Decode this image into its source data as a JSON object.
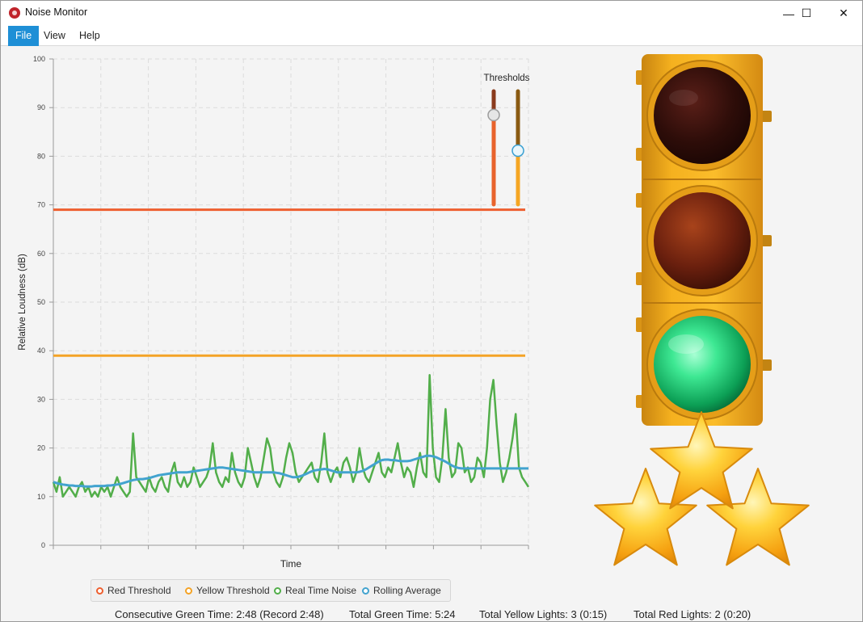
{
  "window": {
    "title": "Noise Monitor",
    "controls": {
      "minimize": "—",
      "maximize": "☐",
      "close": "✕"
    }
  },
  "menu": [
    {
      "label": "File",
      "active": true
    },
    {
      "label": "View",
      "active": false
    },
    {
      "label": "Help",
      "active": false
    }
  ],
  "thresholds_label": "Thresholds",
  "sliders": {
    "red": {
      "value": 85.8,
      "min": 70,
      "max": 90,
      "color": "#e8632c"
    },
    "yellow": {
      "value": 79.5,
      "min": 70,
      "max": 90,
      "color": "#f5a623"
    }
  },
  "traffic_light": {
    "active_lamp": "green"
  },
  "stars": {
    "count": 3,
    "icon": "gold-star-icon"
  },
  "colors": {
    "red_threshold": "#ee5f2f",
    "yellow_threshold": "#f4a326",
    "real_time_noise": "#52ae4a",
    "rolling_average": "#42a3cf"
  },
  "chart_data": {
    "type": "line",
    "xlabel": "Time",
    "ylabel": "Relative Loudness (dB)",
    "ylim": [
      0,
      100
    ],
    "yticks": [
      0,
      10,
      20,
      30,
      40,
      50,
      60,
      70,
      80,
      90,
      100
    ],
    "grid": true,
    "legend_position": "bottom",
    "x": [
      0,
      1,
      2,
      3,
      4,
      5,
      6,
      7,
      8,
      9,
      10,
      11,
      12,
      13,
      14,
      15,
      16,
      17,
      18,
      19,
      20,
      21,
      22,
      23,
      24,
      25,
      26,
      27,
      28,
      29,
      30,
      31,
      32,
      33,
      34,
      35,
      36,
      37,
      38,
      39,
      40,
      41,
      42,
      43,
      44,
      45,
      46,
      47,
      48,
      49,
      50,
      51,
      52,
      53,
      54,
      55,
      56,
      57,
      58,
      59,
      60,
      61,
      62,
      63,
      64,
      65,
      66,
      67,
      68,
      69,
      70,
      71,
      72,
      73,
      74,
      75,
      76,
      77,
      78,
      79,
      80,
      81,
      82,
      83,
      84,
      85,
      86,
      87,
      88,
      89,
      90,
      91,
      92,
      93,
      94,
      95,
      96,
      97,
      98,
      99,
      100,
      101,
      102,
      103,
      104,
      105,
      106,
      107,
      108,
      109,
      110,
      111,
      112,
      113,
      114,
      115,
      116,
      117,
      118,
      119,
      120,
      121,
      122,
      123,
      124,
      125,
      126,
      127,
      128,
      129,
      130,
      131,
      132,
      133,
      134,
      135,
      136,
      137,
      138,
      139,
      140,
      141,
      142,
      143,
      144,
      145,
      146,
      147,
      148,
      149
    ],
    "series": [
      {
        "name": "Red Threshold",
        "constant": 69
      },
      {
        "name": "Yellow Threshold",
        "constant": 39
      },
      {
        "name": "Real Time Noise",
        "values": [
          13,
          11,
          14,
          10,
          11,
          12,
          11,
          10,
          12,
          13,
          11,
          12,
          10,
          11,
          10,
          12,
          11,
          12,
          10,
          12,
          14,
          12,
          11,
          10,
          11,
          23,
          14,
          13,
          12,
          11,
          14,
          12,
          11,
          13,
          14,
          12,
          11,
          15,
          17,
          13,
          12,
          14,
          12,
          13,
          16,
          14,
          12,
          13,
          14,
          16,
          21,
          15,
          13,
          12,
          14,
          13,
          19,
          15,
          13,
          12,
          14,
          20,
          17,
          14,
          12,
          14,
          18,
          22,
          20,
          15,
          13,
          12,
          14,
          18,
          21,
          19,
          15,
          13,
          14,
          15,
          16,
          17,
          14,
          13,
          17,
          23,
          15,
          13,
          15,
          16,
          14,
          17,
          18,
          16,
          13,
          15,
          20,
          16,
          14,
          13,
          15,
          17,
          19,
          15,
          14,
          16,
          15,
          18,
          21,
          17,
          14,
          16,
          15,
          12,
          16,
          19,
          15,
          14,
          35,
          20,
          14,
          13,
          18,
          28,
          18,
          14,
          15,
          21,
          20,
          15,
          16,
          13,
          14,
          18,
          17,
          14,
          20,
          30,
          34,
          25,
          17,
          13,
          15,
          18,
          22,
          27,
          16,
          14,
          13,
          12
        ]
      },
      {
        "name": "Rolling Average",
        "values": [
          13,
          12.8,
          12.6,
          12.5,
          12.4,
          12.3,
          12.3,
          12.2,
          12.2,
          12.2,
          12.1,
          12.1,
          12.1,
          12.2,
          12.2,
          12.2,
          12.2,
          12.3,
          12.3,
          12.4,
          12.5,
          12.6,
          12.8,
          13,
          13.2,
          13.4,
          13.5,
          13.6,
          13.6,
          13.7,
          13.8,
          14,
          14.2,
          14.4,
          14.5,
          14.6,
          14.7,
          14.8,
          14.9,
          15,
          15,
          15,
          15,
          15.1,
          15.2,
          15.3,
          15.4,
          15.5,
          15.6,
          15.7,
          15.8,
          15.9,
          16,
          16,
          15.9,
          15.8,
          15.7,
          15.6,
          15.5,
          15.4,
          15.3,
          15.2,
          15.1,
          15,
          15,
          15,
          15,
          15,
          15,
          15,
          14.9,
          14.8,
          14.6,
          14.4,
          14.2,
          14,
          14,
          14.1,
          14.3,
          14.6,
          14.9,
          15.2,
          15.4,
          15.5,
          15.6,
          15.7,
          15.6,
          15.4,
          15.2,
          15,
          15,
          15,
          15,
          15,
          15,
          15,
          15.1,
          15.3,
          15.6,
          16,
          16.4,
          16.8,
          17.2,
          17.5,
          17.6,
          17.6,
          17.5,
          17.5,
          17.4,
          17.3,
          17.3,
          17.3,
          17.4,
          17.6,
          17.8,
          18,
          18.2,
          18.4,
          18.4,
          18.3,
          18.1,
          17.8,
          17.5,
          17.2,
          16.8,
          16.4,
          16.1,
          15.9,
          15.8,
          15.8,
          15.8,
          15.8,
          15.8,
          15.8,
          15.8,
          15.8,
          15.8,
          15.8,
          15.8,
          15.8,
          15.8,
          15.8,
          15.8,
          15.8,
          15.8,
          15.8,
          15.8,
          15.8,
          15.8,
          15.8
        ]
      }
    ]
  },
  "legend": [
    {
      "label": "Red Threshold",
      "color": "#ee5f2f"
    },
    {
      "label": "Yellow Threshold",
      "color": "#f4a326"
    },
    {
      "label": "Real Time Noise",
      "color": "#52ae4a"
    },
    {
      "label": "Rolling Average",
      "color": "#42a3cf"
    }
  ],
  "status": {
    "consecutive_green": "Consecutive Green Time: 2:48 (Record 2:48)",
    "total_green": "Total Green Time: 5:24",
    "total_yellow": "Total Yellow Lights: 3 (0:15)",
    "total_red": "Total Red Lights: 2 (0:20)"
  }
}
